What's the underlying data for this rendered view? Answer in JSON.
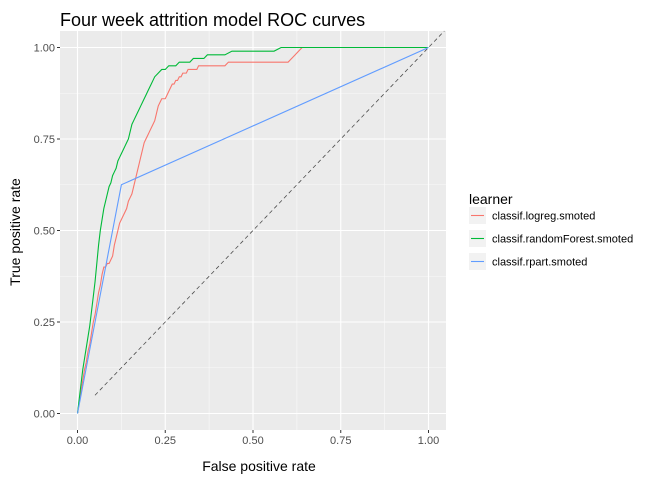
{
  "chart_data": {
    "type": "line",
    "title": "Four week attrition model ROC curves",
    "xlabel": "False positive rate",
    "ylabel": "True positive rate",
    "xlim": [
      0,
      1
    ],
    "ylim": [
      0,
      1
    ],
    "x_ticks": [
      "0.00",
      "0.25",
      "0.50",
      "0.75",
      "1.00"
    ],
    "y_ticks": [
      "0.00",
      "0.25",
      "0.50",
      "0.75",
      "1.00"
    ],
    "grid": true,
    "panel_background": "#ebebeb",
    "legend": {
      "title": "learner",
      "position": "right"
    },
    "reference_line": {
      "x": [
        0,
        1
      ],
      "y": [
        0,
        1
      ],
      "style": "dashed",
      "color": "#4d4d4d"
    },
    "series": [
      {
        "name": "classif.logreg.smoted",
        "color": "#F8766D",
        "x": [
          0,
          0.005,
          0.01,
          0.015,
          0.02,
          0.025,
          0.03,
          0.035,
          0.04,
          0.045,
          0.05,
          0.055,
          0.06,
          0.065,
          0.07,
          0.075,
          0.08,
          0.085,
          0.09,
          0.095,
          0.1,
          0.105,
          0.11,
          0.115,
          0.12,
          0.125,
          0.13,
          0.135,
          0.14,
          0.145,
          0.15,
          0.155,
          0.16,
          0.165,
          0.17,
          0.175,
          0.18,
          0.185,
          0.19,
          0.195,
          0.2,
          0.205,
          0.21,
          0.215,
          0.22,
          0.225,
          0.23,
          0.235,
          0.24,
          0.245,
          0.25,
          0.255,
          0.26,
          0.265,
          0.27,
          0.275,
          0.28,
          0.285,
          0.29,
          0.295,
          0.3,
          0.305,
          0.31,
          0.315,
          0.32,
          0.325,
          0.33,
          0.335,
          0.34,
          0.345,
          0.35,
          0.355,
          0.36,
          0.37,
          0.38,
          0.39,
          0.4,
          0.41,
          0.42,
          0.43,
          0.44,
          0.45,
          0.46,
          0.47,
          0.48,
          0.49,
          0.5,
          0.52,
          0.54,
          0.56,
          0.58,
          0.6,
          0.61,
          0.62,
          0.63,
          0.64,
          0.65,
          0.7,
          0.8,
          0.9,
          1.0
        ],
        "y": [
          0,
          0.03,
          0.06,
          0.09,
          0.12,
          0.14,
          0.17,
          0.19,
          0.22,
          0.25,
          0.27,
          0.3,
          0.33,
          0.35,
          0.38,
          0.4,
          0.4,
          0.41,
          0.41,
          0.42,
          0.43,
          0.46,
          0.48,
          0.5,
          0.52,
          0.53,
          0.54,
          0.55,
          0.56,
          0.58,
          0.59,
          0.6,
          0.62,
          0.64,
          0.66,
          0.68,
          0.7,
          0.72,
          0.74,
          0.75,
          0.76,
          0.77,
          0.78,
          0.79,
          0.8,
          0.82,
          0.84,
          0.85,
          0.86,
          0.86,
          0.86,
          0.87,
          0.88,
          0.89,
          0.9,
          0.9,
          0.91,
          0.91,
          0.92,
          0.92,
          0.93,
          0.93,
          0.93,
          0.94,
          0.94,
          0.94,
          0.94,
          0.94,
          0.94,
          0.95,
          0.95,
          0.95,
          0.95,
          0.95,
          0.95,
          0.95,
          0.95,
          0.95,
          0.95,
          0.96,
          0.96,
          0.96,
          0.96,
          0.96,
          0.96,
          0.96,
          0.96,
          0.96,
          0.96,
          0.96,
          0.96,
          0.96,
          0.97,
          0.98,
          0.99,
          1.0,
          1.0,
          1.0,
          1.0,
          1.0,
          1.0
        ]
      },
      {
        "name": "classif.randomForest.smoted",
        "color": "#00BA38",
        "x": [
          0,
          0.005,
          0.01,
          0.015,
          0.02,
          0.025,
          0.03,
          0.035,
          0.04,
          0.045,
          0.05,
          0.055,
          0.06,
          0.065,
          0.07,
          0.075,
          0.08,
          0.085,
          0.09,
          0.095,
          0.1,
          0.105,
          0.11,
          0.115,
          0.12,
          0.125,
          0.13,
          0.135,
          0.14,
          0.145,
          0.15,
          0.155,
          0.16,
          0.165,
          0.17,
          0.175,
          0.18,
          0.185,
          0.19,
          0.195,
          0.2,
          0.205,
          0.21,
          0.215,
          0.22,
          0.23,
          0.24,
          0.25,
          0.26,
          0.27,
          0.28,
          0.29,
          0.3,
          0.31,
          0.32,
          0.33,
          0.34,
          0.35,
          0.36,
          0.37,
          0.38,
          0.39,
          0.4,
          0.42,
          0.44,
          0.46,
          0.48,
          0.5,
          0.52,
          0.54,
          0.56,
          0.58,
          0.6,
          0.7,
          0.8,
          0.9,
          1.0
        ],
        "y": [
          0,
          0.04,
          0.08,
          0.12,
          0.15,
          0.18,
          0.21,
          0.24,
          0.28,
          0.32,
          0.36,
          0.41,
          0.46,
          0.5,
          0.53,
          0.56,
          0.58,
          0.6,
          0.62,
          0.63,
          0.65,
          0.66,
          0.67,
          0.69,
          0.7,
          0.71,
          0.72,
          0.73,
          0.74,
          0.75,
          0.77,
          0.79,
          0.8,
          0.81,
          0.82,
          0.83,
          0.84,
          0.85,
          0.86,
          0.87,
          0.88,
          0.89,
          0.9,
          0.91,
          0.92,
          0.93,
          0.94,
          0.94,
          0.95,
          0.95,
          0.95,
          0.96,
          0.96,
          0.96,
          0.96,
          0.97,
          0.97,
          0.97,
          0.97,
          0.98,
          0.98,
          0.98,
          0.98,
          0.98,
          0.99,
          0.99,
          0.99,
          0.99,
          0.99,
          0.99,
          0.99,
          1.0,
          1.0,
          1.0,
          1.0,
          1.0,
          1.0
        ]
      },
      {
        "name": "classif.rpart.smoted",
        "color": "#619CFF",
        "x": [
          0,
          0.02,
          0.04,
          0.06,
          0.08,
          0.1,
          0.125,
          1.0
        ],
        "y": [
          0,
          0.1,
          0.2,
          0.3,
          0.4,
          0.5,
          0.625,
          1.0
        ]
      }
    ]
  }
}
